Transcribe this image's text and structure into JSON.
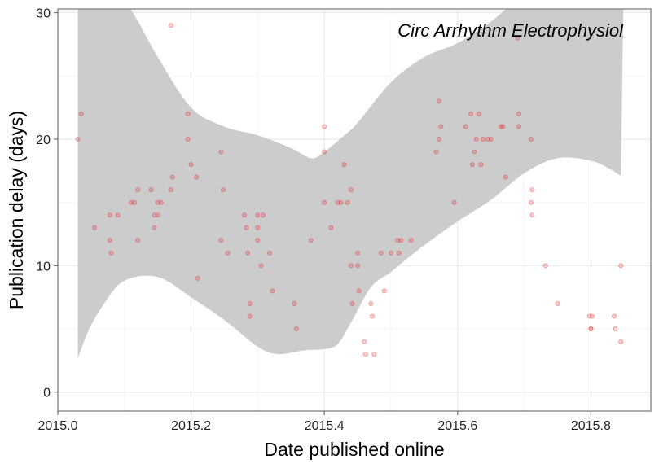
{
  "chart_data": {
    "type": "scatter",
    "title": "",
    "annotation": "Circ Arrhythm Electrophysiol",
    "xlabel": "Date published online",
    "ylabel": "Publication delay (days)",
    "xlim": [
      2015.0,
      2015.89
    ],
    "ylim": [
      -1.5,
      30.3
    ],
    "x_ticks": [
      2015.0,
      2015.2,
      2015.4,
      2015.6,
      2015.8
    ],
    "x_tick_labels": [
      "2015.0",
      "2015.2",
      "2015.4",
      "2015.6",
      "2015.8"
    ],
    "y_ticks": [
      0,
      10,
      20,
      30
    ],
    "y_tick_labels": [
      "0",
      "10",
      "20",
      "30"
    ],
    "grid": true,
    "point_color": "#e41a1c",
    "band_color": "#cccccc",
    "points": [
      [
        2015.03,
        20
      ],
      [
        2015.035,
        22
      ],
      [
        2015.055,
        13
      ],
      [
        2015.078,
        14
      ],
      [
        2015.078,
        12
      ],
      [
        2015.08,
        11
      ],
      [
        2015.09,
        14
      ],
      [
        2015.11,
        15
      ],
      [
        2015.115,
        15
      ],
      [
        2015.12,
        16
      ],
      [
        2015.12,
        12
      ],
      [
        2015.14,
        16
      ],
      [
        2015.145,
        14
      ],
      [
        2015.145,
        13
      ],
      [
        2015.15,
        15
      ],
      [
        2015.15,
        14
      ],
      [
        2015.155,
        15
      ],
      [
        2015.17,
        29
      ],
      [
        2015.17,
        16
      ],
      [
        2015.172,
        17
      ],
      [
        2015.195,
        22
      ],
      [
        2015.195,
        20
      ],
      [
        2015.2,
        18
      ],
      [
        2015.208,
        17
      ],
      [
        2015.21,
        9
      ],
      [
        2015.245,
        19
      ],
      [
        2015.248,
        16
      ],
      [
        2015.245,
        12
      ],
      [
        2015.255,
        11
      ],
      [
        2015.28,
        14
      ],
      [
        2015.283,
        13
      ],
      [
        2015.285,
        11
      ],
      [
        2015.288,
        7
      ],
      [
        2015.288,
        6
      ],
      [
        2015.3,
        14
      ],
      [
        2015.3,
        13
      ],
      [
        2015.3,
        12
      ],
      [
        2015.305,
        10
      ],
      [
        2015.308,
        14
      ],
      [
        2015.318,
        11
      ],
      [
        2015.322,
        8
      ],
      [
        2015.355,
        7
      ],
      [
        2015.358,
        5
      ],
      [
        2015.38,
        12
      ],
      [
        2015.4,
        21
      ],
      [
        2015.4,
        19
      ],
      [
        2015.4,
        15
      ],
      [
        2015.41,
        13
      ],
      [
        2015.42,
        15
      ],
      [
        2015.425,
        15
      ],
      [
        2015.43,
        18
      ],
      [
        2015.435,
        15
      ],
      [
        2015.44,
        16
      ],
      [
        2015.44,
        10
      ],
      [
        2015.442,
        7
      ],
      [
        2015.45,
        11
      ],
      [
        2015.45,
        10
      ],
      [
        2015.452,
        8
      ],
      [
        2015.46,
        4
      ],
      [
        2015.462,
        3
      ],
      [
        2015.47,
        7
      ],
      [
        2015.472,
        6
      ],
      [
        2015.475,
        3
      ],
      [
        2015.485,
        11
      ],
      [
        2015.49,
        8
      ],
      [
        2015.5,
        11
      ],
      [
        2015.51,
        12
      ],
      [
        2015.512,
        11
      ],
      [
        2015.515,
        12
      ],
      [
        2015.53,
        12
      ],
      [
        2015.568,
        19
      ],
      [
        2015.572,
        23
      ],
      [
        2015.575,
        21
      ],
      [
        2015.572,
        20
      ],
      [
        2015.595,
        15
      ],
      [
        2015.612,
        21
      ],
      [
        2015.62,
        22
      ],
      [
        2015.622,
        18
      ],
      [
        2015.625,
        19
      ],
      [
        2015.628,
        20
      ],
      [
        2015.632,
        22
      ],
      [
        2015.635,
        18
      ],
      [
        2015.638,
        20
      ],
      [
        2015.645,
        20
      ],
      [
        2015.65,
        20
      ],
      [
        2015.665,
        21
      ],
      [
        2015.668,
        21
      ],
      [
        2015.672,
        17
      ],
      [
        2015.69,
        28
      ],
      [
        2015.692,
        22
      ],
      [
        2015.692,
        21
      ],
      [
        2015.71,
        20
      ],
      [
        2015.712,
        16
      ],
      [
        2015.71,
        15
      ],
      [
        2015.712,
        14
      ],
      [
        2015.732,
        10
      ],
      [
        2015.75,
        7
      ],
      [
        2015.798,
        6
      ],
      [
        2015.8,
        5
      ],
      [
        2015.8,
        5
      ],
      [
        2015.802,
        6
      ],
      [
        2015.835,
        6
      ],
      [
        2015.837,
        5
      ],
      [
        2015.845,
        10
      ],
      [
        2015.845,
        4
      ]
    ],
    "band_upper": [
      [
        2015.03,
        35
      ],
      [
        2015.1,
        31
      ],
      [
        2015.15,
        26.5
      ],
      [
        2015.2,
        22.5
      ],
      [
        2015.25,
        21
      ],
      [
        2015.3,
        20.3
      ],
      [
        2015.35,
        19.3
      ],
      [
        2015.38,
        18.5
      ],
      [
        2015.4,
        19
      ],
      [
        2015.43,
        20.3
      ],
      [
        2015.45,
        21.3
      ],
      [
        2015.5,
        24.5
      ],
      [
        2015.55,
        26.5
      ],
      [
        2015.6,
        27.6
      ],
      [
        2015.65,
        29.3
      ],
      [
        2015.7,
        31.5
      ],
      [
        2015.75,
        33
      ],
      [
        2015.8,
        34
      ],
      [
        2015.85,
        35
      ]
    ],
    "band_lower": [
      [
        2015.03,
        2.7
      ],
      [
        2015.05,
        5.3
      ],
      [
        2015.08,
        7.8
      ],
      [
        2015.1,
        8.8
      ],
      [
        2015.13,
        9.2
      ],
      [
        2015.16,
        8.9
      ],
      [
        2015.2,
        7.5
      ],
      [
        2015.25,
        5.7
      ],
      [
        2015.3,
        3.6
      ],
      [
        2015.33,
        3.0
      ],
      [
        2015.37,
        3.3
      ],
      [
        2015.4,
        3.4
      ],
      [
        2015.42,
        3.8
      ],
      [
        2015.44,
        5.5
      ],
      [
        2015.47,
        8.3
      ],
      [
        2015.5,
        9.5
      ],
      [
        2015.53,
        10.8
      ],
      [
        2015.56,
        12.0
      ],
      [
        2015.6,
        13.5
      ],
      [
        2015.65,
        15.2
      ],
      [
        2015.7,
        17.3
      ],
      [
        2015.75,
        18.5
      ],
      [
        2015.8,
        18.3
      ],
      [
        2015.83,
        17.6
      ],
      [
        2015.845,
        17.1
      ]
    ]
  }
}
